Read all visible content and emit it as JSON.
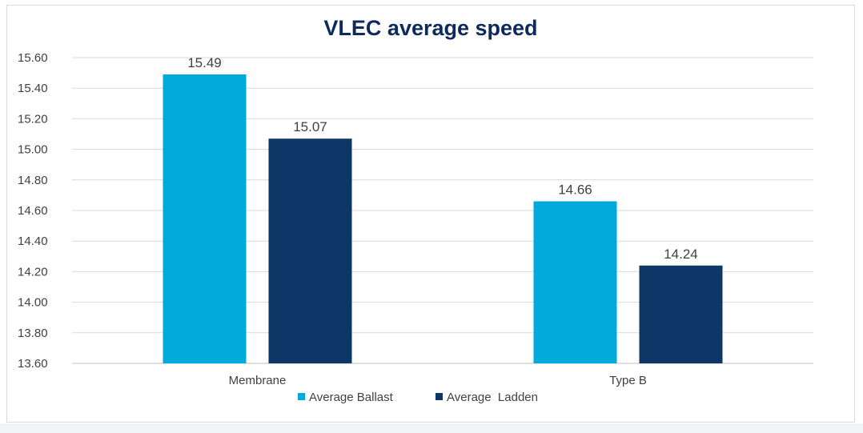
{
  "chart_data": {
    "type": "bar",
    "title": "VLEC average speed",
    "categories": [
      "Membrane",
      "Type B"
    ],
    "series": [
      {
        "name": "Average Ballast",
        "color": "#00aadb",
        "values": [
          15.49,
          14.66
        ]
      },
      {
        "name": "Average  Ladden",
        "color": "#0d3766",
        "values": [
          15.07,
          14.24
        ]
      }
    ],
    "ylim": [
      13.6,
      15.6
    ],
    "ytick_labels": [
      "13.60",
      "13.80",
      "14.00",
      "14.20",
      "14.40",
      "14.60",
      "14.80",
      "15.00",
      "15.20",
      "15.40",
      "15.60"
    ],
    "grid": true,
    "legend_position": "bottom",
    "xlabel": "",
    "ylabel": ""
  }
}
